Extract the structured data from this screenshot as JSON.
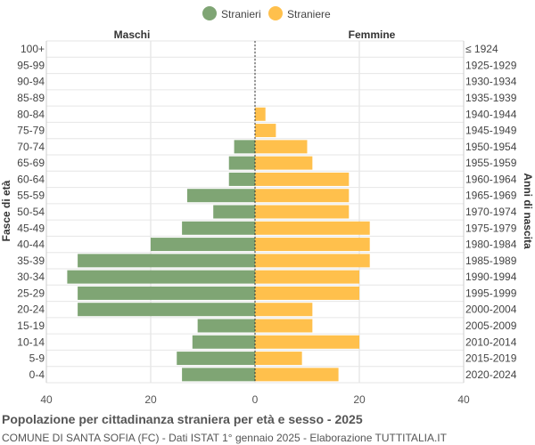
{
  "chart_data": {
    "type": "bar",
    "orientation": "horizontal-pyramid",
    "title": "Popolazione per cittadinanza straniera per età e sesso - 2025",
    "subtitle": "COMUNE DI SANTA SOFIA (FC) - Dati ISTAT 1° gennaio 2025 - Elaborazione TUTTITALIA.IT",
    "left_header": "Maschi",
    "right_header": "Femmine",
    "ylabel_left": "Fasce di età",
    "ylabel_right": "Anni di nascita",
    "legend_position": "top-center",
    "grid": true,
    "xlim": [
      -40,
      40
    ],
    "x_ticks": [
      "40",
      "20",
      "0",
      "20",
      "40"
    ],
    "categories": [
      "100+",
      "95-99",
      "90-94",
      "85-89",
      "80-84",
      "75-79",
      "70-74",
      "65-69",
      "60-64",
      "55-59",
      "50-54",
      "45-49",
      "40-44",
      "35-39",
      "30-34",
      "25-29",
      "20-24",
      "15-19",
      "10-14",
      "5-9",
      "0-4"
    ],
    "birth_years": [
      "≤ 1924",
      "1925-1929",
      "1930-1934",
      "1935-1939",
      "1940-1944",
      "1945-1949",
      "1950-1954",
      "1955-1959",
      "1960-1964",
      "1965-1969",
      "1970-1974",
      "1975-1979",
      "1980-1984",
      "1985-1989",
      "1990-1994",
      "1995-1999",
      "2000-2004",
      "2005-2009",
      "2010-2014",
      "2015-2019",
      "2020-2024"
    ],
    "series": [
      {
        "name": "Stranieri",
        "side": "left",
        "color": "#7fa574",
        "values": [
          0,
          0,
          0,
          0,
          0,
          0,
          4,
          5,
          5,
          13,
          8,
          14,
          20,
          34,
          36,
          34,
          34,
          11,
          12,
          15,
          14
        ]
      },
      {
        "name": "Straniere",
        "side": "right",
        "color": "#ffc04c",
        "values": [
          0,
          0,
          0,
          0,
          2,
          4,
          10,
          11,
          18,
          18,
          18,
          22,
          22,
          22,
          20,
          20,
          11,
          11,
          20,
          9,
          16
        ]
      }
    ]
  }
}
